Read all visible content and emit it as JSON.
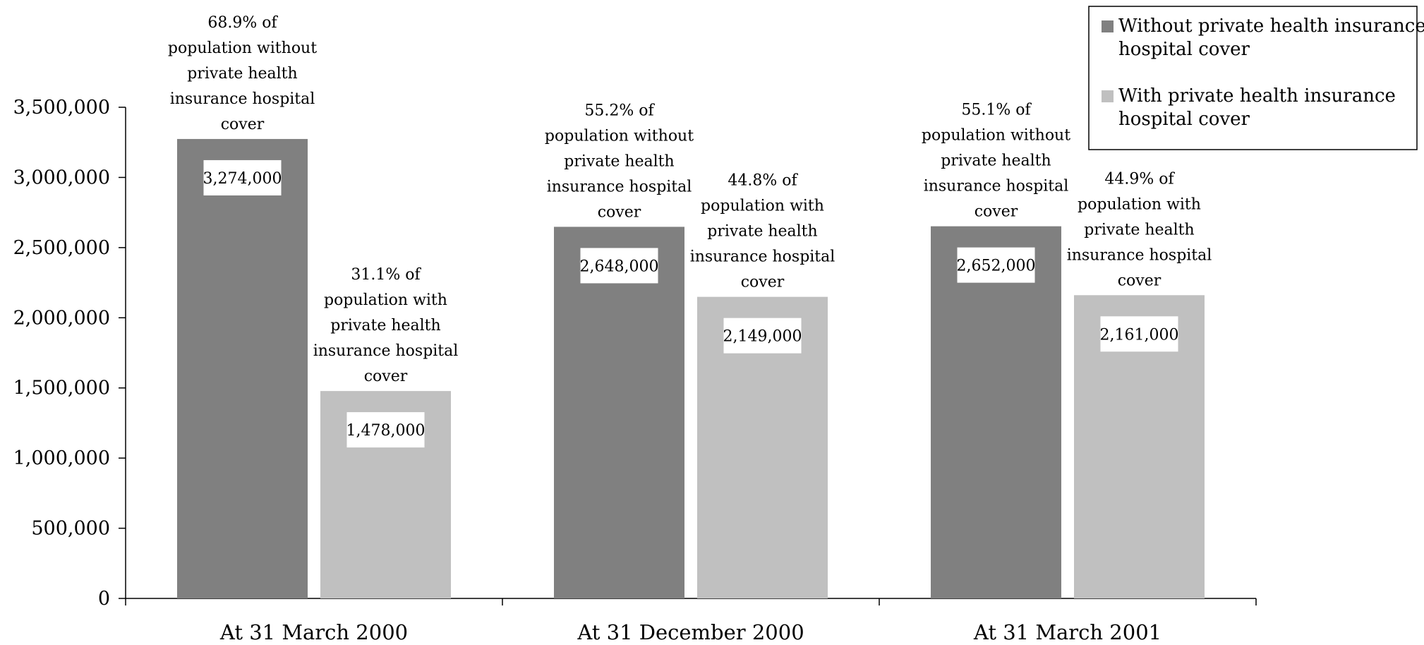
{
  "chart_data": {
    "type": "bar",
    "categories": [
      "At 31 March 2000",
      "At 31 December 2000",
      "At 31 March 2001"
    ],
    "series": [
      {
        "name": "Without private health insurance hospital cover",
        "color": "#808080",
        "values": [
          3274000,
          2648000,
          2652000
        ],
        "value_labels": [
          "3,274,000",
          "2,648,000",
          "2,652,000"
        ],
        "annotations": [
          "68.9% of population without private health insurance hospital cover",
          "55.2% of population without private health insurance hospital cover",
          "55.1% of population without private health insurance hospital cover"
        ]
      },
      {
        "name": "With private health insurance hospital cover",
        "color": "#c0c0c0",
        "values": [
          1478000,
          2149000,
          2161000
        ],
        "value_labels": [
          "1,478,000",
          "2,149,000",
          "2,161,000"
        ],
        "annotations": [
          "31.1% of population with private health insurance hospital cover",
          "44.8% of population with private health insurance hospital cover",
          "44.9% of population with private health insurance hospital cover"
        ]
      }
    ],
    "ylim": [
      0,
      3500000
    ],
    "yticks": [
      0,
      500000,
      1000000,
      1500000,
      2000000,
      2500000,
      3000000,
      3500000
    ],
    "ytick_labels": [
      "0",
      "500,000",
      "1,000,000",
      "1,500,000",
      "2,000,000",
      "2,500,000",
      "3,000,000",
      "3,500,000"
    ],
    "grid": false,
    "legend_position": "top-right"
  }
}
